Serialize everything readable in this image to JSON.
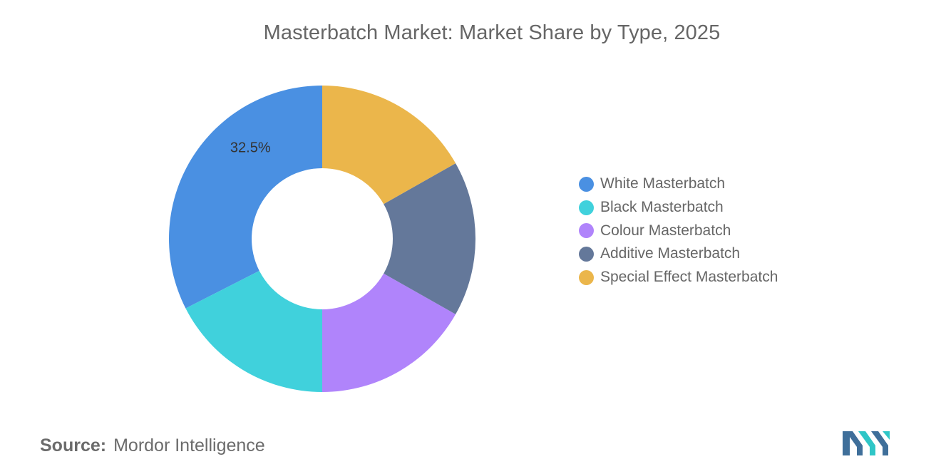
{
  "header": {
    "title": "Masterbatch Market: Market Share by Type, 2025"
  },
  "chart_data": {
    "type": "pie",
    "variant": "donut",
    "title": "Masterbatch Market: Market Share by Type, 2025",
    "categories": [
      "White Masterbatch",
      "Black Masterbatch",
      "Colour Masterbatch",
      "Additive Masterbatch",
      "Special Effect Masterbatch"
    ],
    "values": [
      32.5,
      17.5,
      16.8,
      16.4,
      16.8
    ],
    "colors": [
      "#4a90e2",
      "#40d1dc",
      "#b084fb",
      "#64789a",
      "#ebb64b"
    ],
    "data_labels": [
      {
        "series": "White Masterbatch",
        "text": "32.5%"
      }
    ],
    "legend_position": "right"
  },
  "legend": {
    "items": [
      {
        "label": "White Masterbatch",
        "color": "#4a90e2"
      },
      {
        "label": "Black Masterbatch",
        "color": "#40d1dc"
      },
      {
        "label": "Colour Masterbatch",
        "color": "#b084fb"
      },
      {
        "label": "Additive Masterbatch",
        "color": "#64789a"
      },
      {
        "label": "Special Effect Masterbatch",
        "color": "#ebb64b"
      }
    ]
  },
  "footer": {
    "source_label": "Source:",
    "source_value": "Mordor Intelligence"
  },
  "logo": {
    "name": "mordor-intelligence-logo",
    "colors": [
      "#3f6f9a",
      "#2fc6c7"
    ]
  }
}
